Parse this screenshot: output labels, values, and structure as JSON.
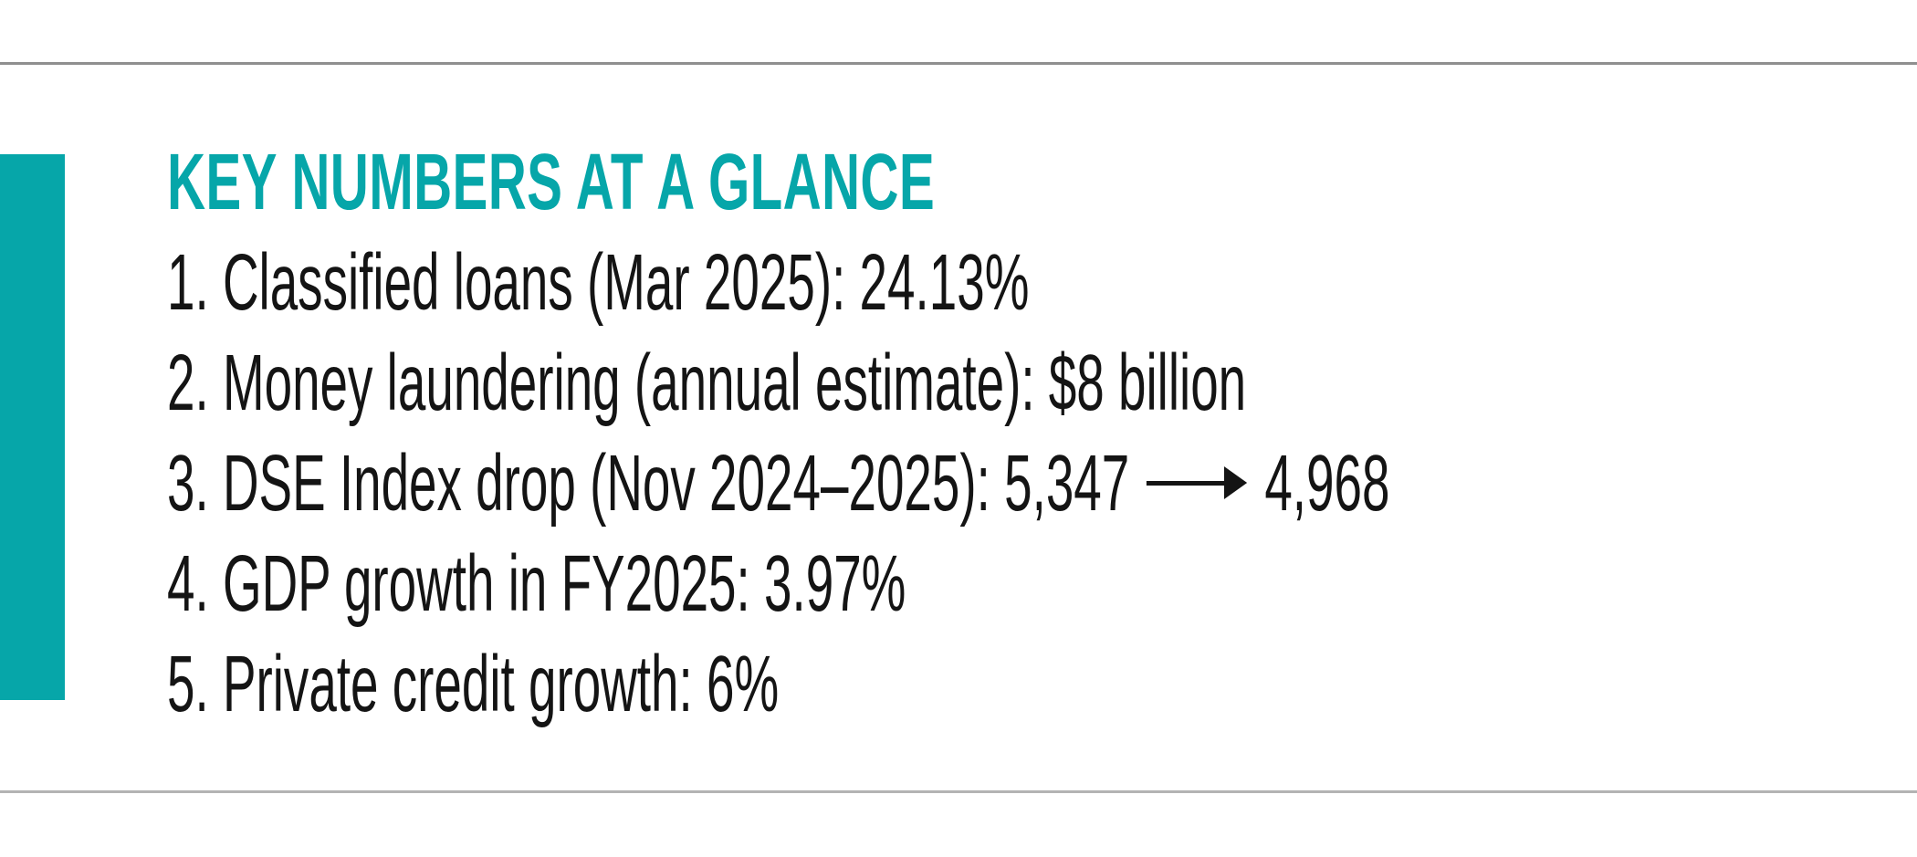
{
  "panel": {
    "title": "KEY NUMBERS AT A GLANCE",
    "items": [
      {
        "text": "1. Classified loans (Mar 2025): 24.13%"
      },
      {
        "text": "2. Money laundering (annual estimate): $8 billion"
      },
      {
        "text": "3. DSE Index drop (Nov 2024–2025): 5,347",
        "arrow_to": "4,968"
      },
      {
        "text": "4. GDP growth in FY2025: 3.97%"
      },
      {
        "text": "5. Private credit growth: 6%"
      }
    ],
    "colors": {
      "accent": "#06a6a9",
      "text": "#141414",
      "rule_top": "#8f8f8f",
      "rule_bottom": "#b3b3b3"
    }
  }
}
